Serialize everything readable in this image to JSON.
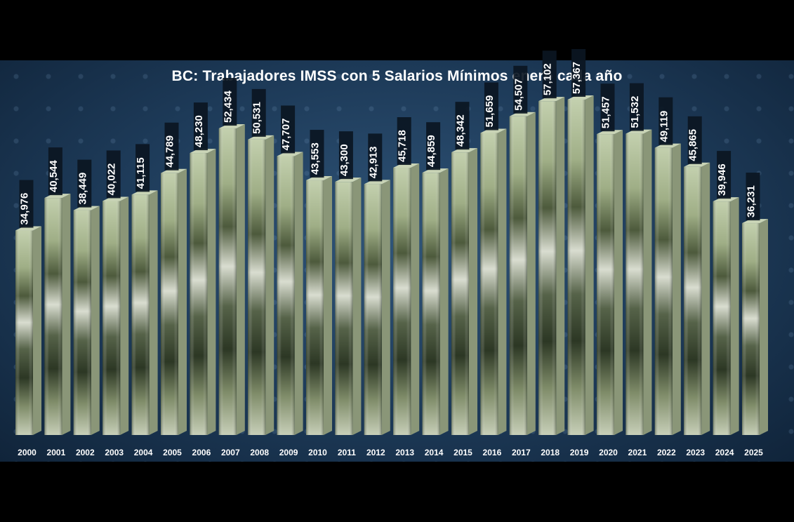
{
  "chart_data": {
    "type": "bar",
    "title": "BC: Trabajadores IMSS con 5 Salarios Mínimos enero cada año",
    "xlabel": "",
    "ylabel": "",
    "categories": [
      "2000",
      "2001",
      "2002",
      "2003",
      "2004",
      "2005",
      "2006",
      "2007",
      "2008",
      "2009",
      "2010",
      "2011",
      "2012",
      "2013",
      "2014",
      "2015",
      "2016",
      "2017",
      "2018",
      "2019",
      "2020",
      "2021",
      "2022",
      "2023",
      "2024",
      "2025"
    ],
    "values": [
      34976,
      40544,
      38449,
      40022,
      41115,
      44789,
      48230,
      52434,
      50531,
      47707,
      43553,
      43300,
      42913,
      45718,
      44859,
      48342,
      51659,
      54507,
      57102,
      57367,
      51457,
      51532,
      49119,
      45865,
      39946,
      36231
    ],
    "labels": [
      "34,976",
      "40,544",
      "38,449",
      "40,022",
      "41,115",
      "44,789",
      "48,230",
      "52,434",
      "50,531",
      "47,707",
      "43,553",
      "43,300",
      "42,913",
      "45,718",
      "44,859",
      "48,342",
      "51,659",
      "54,507",
      "57,102",
      "57,367",
      "51,457",
      "51,532",
      "49,119",
      "45,865",
      "39,946",
      "36,231"
    ],
    "ylim": [
      0,
      60000
    ],
    "grid": false,
    "legend": "none",
    "colors": {
      "background": "#1d3a58",
      "bar_light": "#b9c8a3",
      "bar_dark": "#2f3b26",
      "bar_side": "#8a9678",
      "label_box": "#0b1622",
      "text": "#ffffff"
    }
  }
}
